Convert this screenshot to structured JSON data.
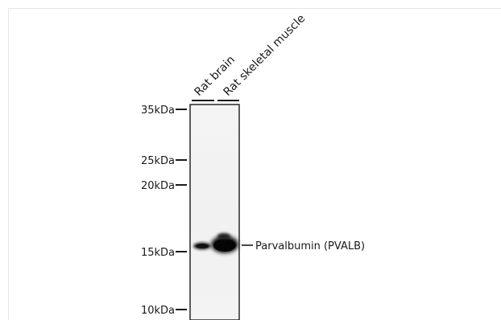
{
  "lanes": [
    {
      "label": "Rat brain"
    },
    {
      "label": "Rat skeletal muscle"
    }
  ],
  "markers": [
    {
      "label": "35kDa"
    },
    {
      "label": "25kDa"
    },
    {
      "label": "20kDa"
    },
    {
      "label": "15kDa"
    },
    {
      "label": "10kDa"
    }
  ],
  "band": {
    "label": "Parvalbumin (PVALB)"
  }
}
